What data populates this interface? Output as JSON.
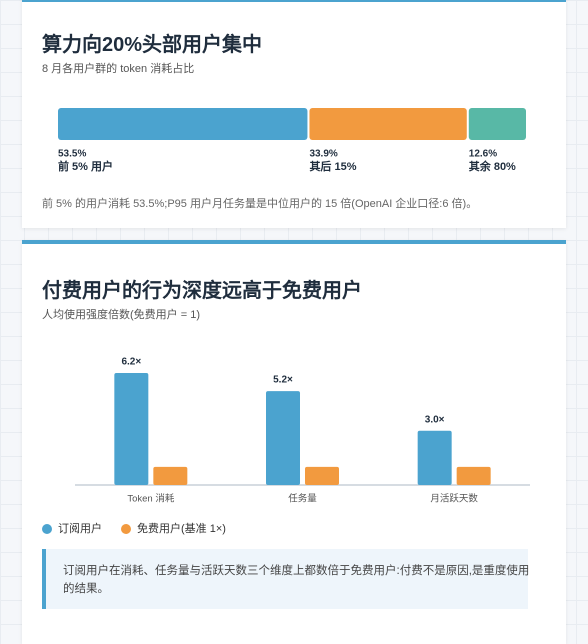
{
  "chart_data": [
    {
      "type": "bar",
      "orientation": "horizontal",
      "stacked": true,
      "title": "算力向20%头部用户集中",
      "subtitle": "8 月各用户群的 token 消耗占比",
      "series": [
        {
          "name": "前 5% 用户",
          "color": "#4ba3cf",
          "values": [
            53.5
          ],
          "value_labels": [
            "53.5%"
          ]
        },
        {
          "name": "其后 15%",
          "color": "#f29a3f",
          "values": [
            33.9
          ],
          "value_labels": [
            "33.9%"
          ]
        },
        {
          "name": "其余 80%",
          "color": "#58b8a6",
          "values": [
            12.6
          ],
          "value_labels": [
            "12.6%"
          ]
        }
      ],
      "note": "前 5% 的用户消耗 53.5%;P95 用户月任务量是中位用户的 15 倍(OpenAI 企业口径:6 倍)。"
    },
    {
      "type": "bar",
      "stacked": false,
      "title": "付费用户的行为深度远高于免费用户",
      "subtitle": "人均使用强度倍数(免费用户 = 1)",
      "categories": [
        "Token 消耗",
        "任务量",
        "月活跃天数"
      ],
      "series": [
        {
          "name": "订阅用户",
          "color": "#4ba3cf",
          "values": [
            6.2,
            5.2,
            3.0
          ],
          "value_labels": [
            "6.2×",
            "5.2×",
            "3.0×"
          ]
        },
        {
          "name": "免费用户(基准 1×)",
          "color": "#f29a3f",
          "values": [
            1,
            1,
            1
          ]
        }
      ],
      "note": "订阅用户在消耗、任务量与活跃天数三个维度上都数倍于免费用户:付费不是原因,是重度使用的结果。"
    }
  ]
}
